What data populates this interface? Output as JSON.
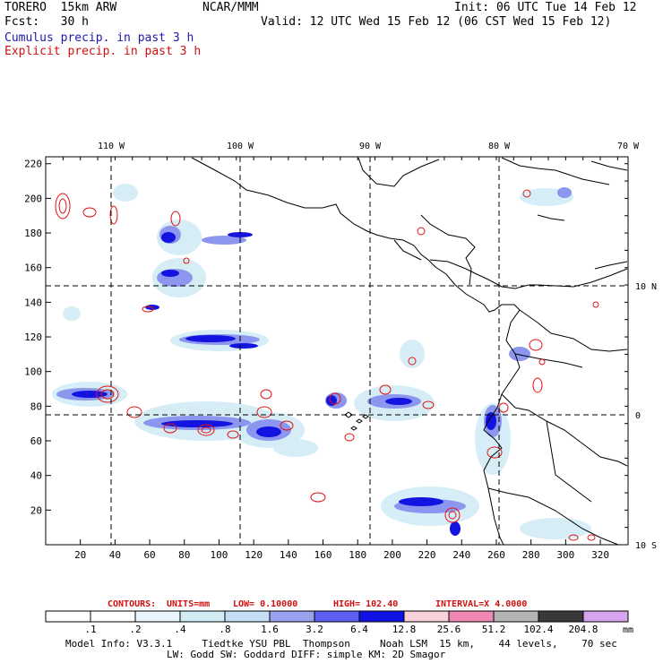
{
  "header": {
    "model": "TORERO  15km ARW",
    "org": "NCAR/MMM",
    "init": "Init: 06 UTC Tue 14 Feb 12",
    "fcst": "Fcst:   30 h",
    "valid": "Valid: 12 UTC Wed 15 Feb 12 (06 CST Wed 15 Feb 12)",
    "field_cumulus": "Cumulus precip. in past 3 h",
    "field_explicit": "Explicit precip. in past 3 h"
  },
  "colors": {
    "cumulus_text": "#1a1aa8",
    "explicit_text": "#d01010",
    "explicit_contour": "#e01414",
    "coast": "#000000",
    "grid": "#000000"
  },
  "map": {
    "top_labels": [
      "110 W",
      "100 W",
      "90 W",
      "80 W",
      "70 W"
    ],
    "right_labels": [
      "10 N",
      "0",
      "10 S"
    ],
    "y_ticks": [
      "220",
      "200",
      "180",
      "160",
      "140",
      "120",
      "100",
      "80",
      "60",
      "40",
      "20"
    ],
    "x_ticks": [
      "20",
      "40",
      "60",
      "80",
      "100",
      "120",
      "140",
      "160",
      "180",
      "200",
      "220",
      "240",
      "260",
      "280",
      "300",
      "320"
    ]
  },
  "contours_line": {
    "label": "CONTOURS:",
    "units": "UNITS=mm",
    "low": "LOW= 0.10000",
    "high": "HIGH= 102.40",
    "interval": "INTERVAL=X 4.0000"
  },
  "colorbar": {
    "unit": "mm",
    "labels": [
      ".1",
      ".2",
      ".4",
      ".8",
      "1.6",
      "3.2",
      "6.4",
      "12.8",
      "25.6",
      "51.2",
      "102.4",
      "204.8"
    ],
    "bins": [
      {
        "color": "#ffffff"
      },
      {
        "color": "#ffffff"
      },
      {
        "color": "#e9f4ff"
      },
      {
        "color": "#d2ecf6"
      },
      {
        "color": "#c6ddf6"
      },
      {
        "color": "#9aa2f0"
      },
      {
        "color": "#5f5ff2"
      },
      {
        "color": "#1010e4"
      },
      {
        "color": "#f9d2d9"
      },
      {
        "color": "#ef88b3"
      },
      {
        "color": "#b4b4b4"
      },
      {
        "color": "#393939"
      },
      {
        "color": "#d7a5f0"
      }
    ]
  },
  "footer": {
    "line1": "Model Info: V3.3.1     Tiedtke YSU PBL  Thompson     Noah LSM  15 km,    44 levels,    70 sec",
    "line2": "LW: Godd SW: Goddard DIFF: simple KM: 2D Smagor"
  }
}
